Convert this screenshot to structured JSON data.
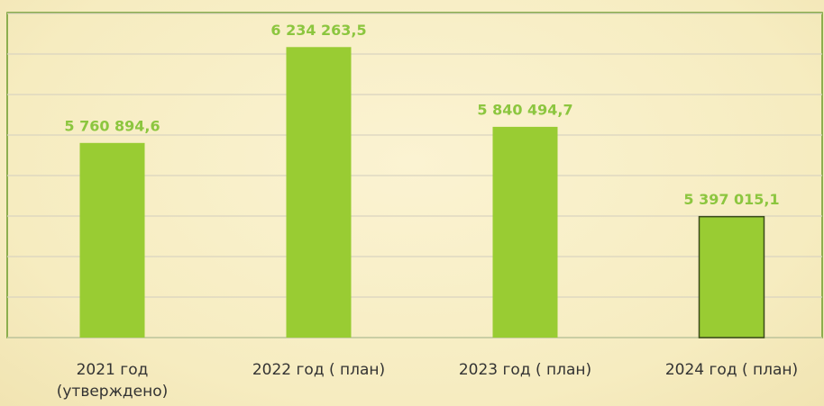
{
  "chart_data": {
    "type": "bar",
    "categories": [
      "2021 год\n(утверждено)",
      "2022 год ( план)",
      "2023 год ( план)",
      "2024 год ( план)"
    ],
    "values": [
      5760894.6,
      6234263.5,
      5840494.7,
      5397015.1
    ],
    "value_labels": [
      "5 760 894,6",
      "6 234 263,5",
      "5 840 494,7",
      "5 397 015,1"
    ],
    "color": "#99cc33",
    "ylim": [
      4800000,
      6400000
    ],
    "yticks": [
      4800000,
      5000000,
      5200000,
      5400000,
      5600000,
      5800000,
      6000000,
      6200000,
      6400000
    ],
    "grid": true
  }
}
